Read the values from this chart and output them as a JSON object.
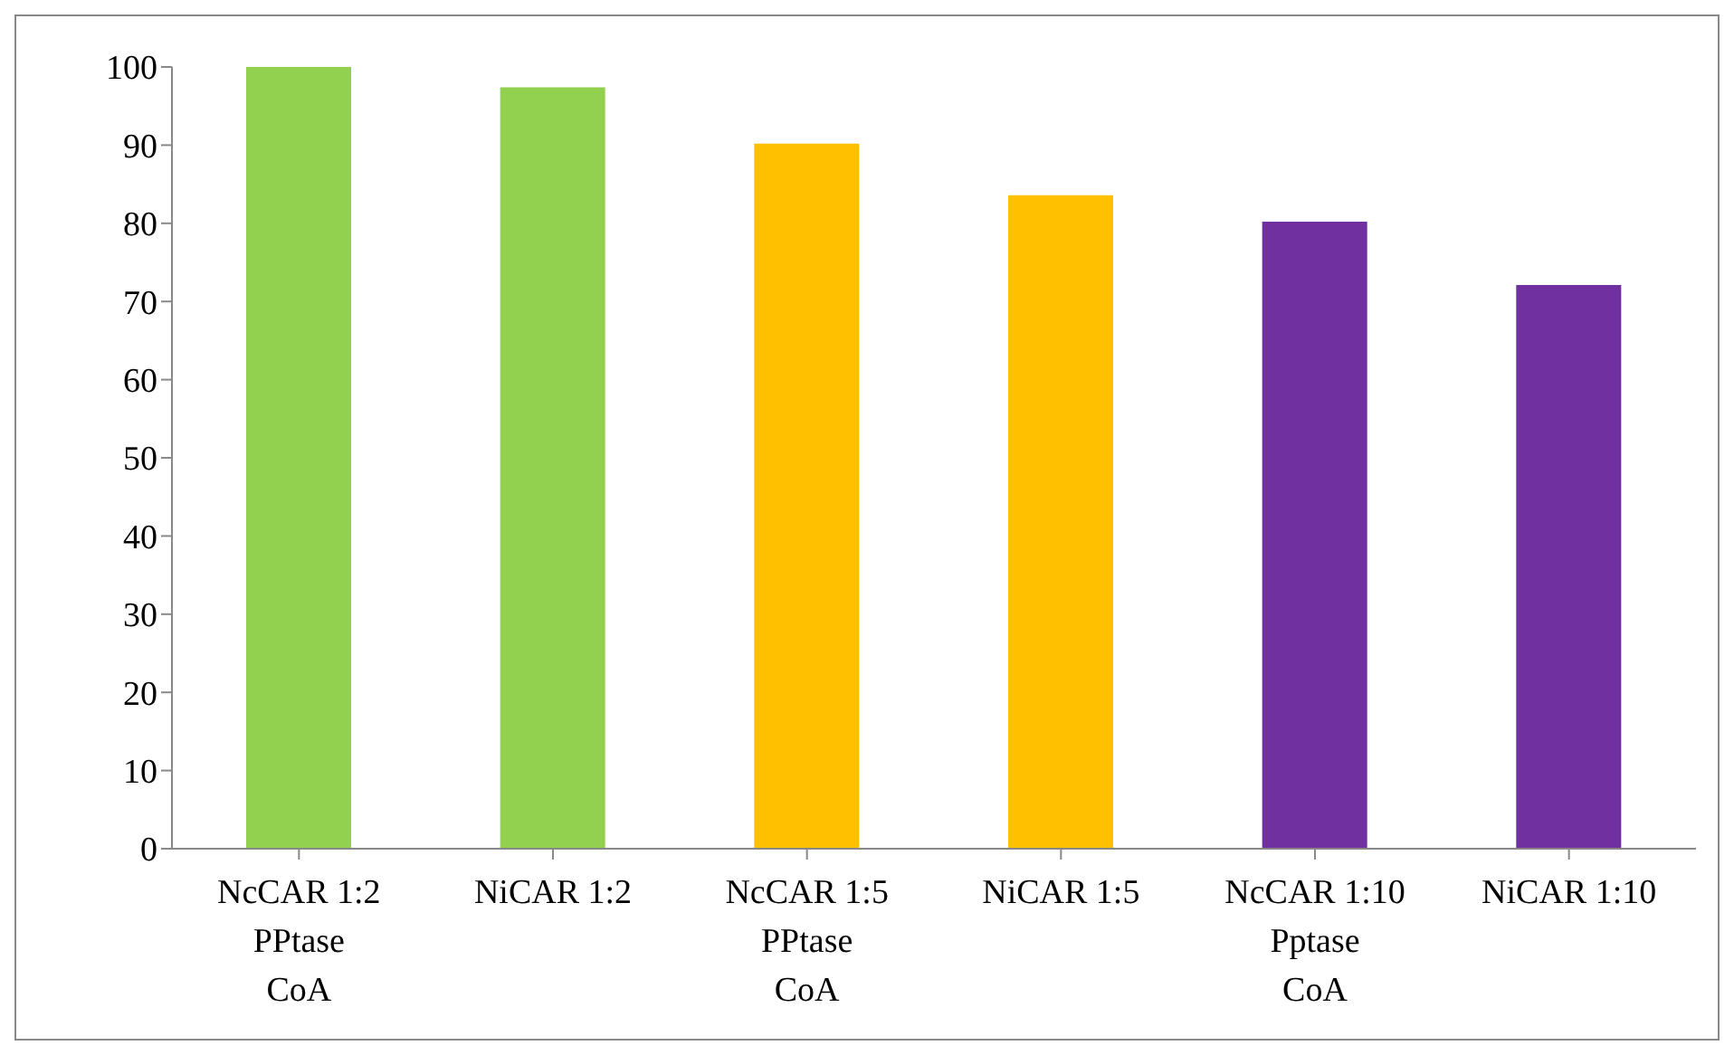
{
  "chart_data": {
    "type": "bar",
    "categories": [
      "NcCAR 1:2\nPPtase\nCoA",
      "NiCAR 1:2",
      "NcCAR 1:5\nPPtase\nCoA",
      "NiCAR 1:5",
      "NcCAR 1:10\nPptase\nCoA",
      "NiCAR 1:10"
    ],
    "values": [
      100,
      97.4,
      90.2,
      83.6,
      80.2,
      72.1
    ],
    "colors": [
      "#92d050",
      "#92d050",
      "#ffc000",
      "#ffc000",
      "#7030a0",
      "#7030a0"
    ],
    "ylim": [
      0,
      100
    ],
    "yticks": [
      0,
      10,
      20,
      30,
      40,
      50,
      60,
      70,
      80,
      90,
      100
    ],
    "grid": false
  }
}
